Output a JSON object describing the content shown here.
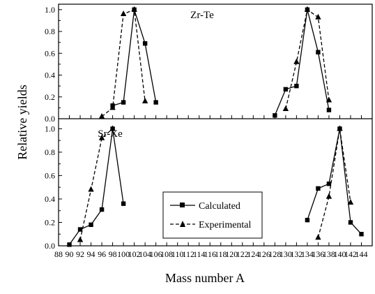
{
  "chart_data": [
    {
      "type": "line",
      "panel_title": "Zr-Te",
      "xlim": [
        88,
        146
      ],
      "ylim": [
        0.0,
        1.05
      ],
      "yticks": [
        0.0,
        0.2,
        0.4,
        0.6,
        0.8,
        1.0
      ],
      "series": [
        {
          "name": "Calculated",
          "style": "solid",
          "marker": "square",
          "segments": [
            [
              [
                98,
                0.12
              ],
              [
                100,
                0.15
              ],
              [
                102,
                1.0
              ],
              [
                104,
                0.69
              ],
              [
                106,
                0.15
              ]
            ],
            [
              [
                128,
                0.03
              ],
              [
                130,
                0.27
              ],
              [
                132,
                0.3
              ],
              [
                134,
                1.0
              ],
              [
                136,
                0.61
              ],
              [
                138,
                0.08
              ]
            ]
          ]
        },
        {
          "name": "Experimental",
          "style": "dashed",
          "marker": "triangle",
          "segments": [
            [
              [
                96,
                0.02
              ],
              [
                98,
                0.1
              ],
              [
                100,
                0.96
              ],
              [
                102,
                1.0
              ],
              [
                104,
                0.16
              ]
            ],
            [
              [
                130,
                0.09
              ],
              [
                132,
                0.52
              ],
              [
                134,
                1.0
              ],
              [
                136,
                0.93
              ],
              [
                138,
                0.17
              ]
            ]
          ]
        }
      ]
    },
    {
      "type": "line",
      "panel_title": "Sr-Xe",
      "xlim": [
        88,
        146
      ],
      "ylim": [
        0.0,
        1.05
      ],
      "yticks": [
        0.0,
        0.2,
        0.4,
        0.6,
        0.8,
        1.0
      ],
      "series": [
        {
          "name": "Calculated",
          "style": "solid",
          "marker": "square",
          "segments": [
            [
              [
                90,
                0.01
              ],
              [
                92,
                0.14
              ],
              [
                94,
                0.18
              ],
              [
                96,
                0.31
              ],
              [
                98,
                1.0
              ],
              [
                100,
                0.36
              ]
            ],
            [
              [
                134,
                0.22
              ],
              [
                136,
                0.49
              ],
              [
                138,
                0.53
              ],
              [
                140,
                1.0
              ],
              [
                142,
                0.2
              ],
              [
                144,
                0.1
              ]
            ]
          ]
        },
        {
          "name": "Experimental",
          "style": "dashed",
          "marker": "triangle",
          "segments": [
            [
              [
                92,
                0.05
              ],
              [
                94,
                0.48
              ],
              [
                96,
                0.92
              ],
              [
                98,
                1.0
              ]
            ],
            [
              [
                136,
                0.07
              ],
              [
                138,
                0.42
              ],
              [
                140,
                1.0
              ],
              [
                142,
                0.37
              ]
            ]
          ]
        }
      ]
    }
  ],
  "x_ticks": [
    88,
    90,
    92,
    94,
    96,
    98,
    100,
    102,
    104,
    106,
    108,
    110,
    112,
    114,
    116,
    118,
    120,
    122,
    124,
    126,
    128,
    130,
    132,
    134,
    136,
    138,
    140,
    142,
    144
  ],
  "xlabel": "Mass number A",
  "ylabel": "Relative yields",
  "legend": {
    "placement": "bottom-center",
    "entries": [
      {
        "label": "Calculated",
        "style": "solid",
        "marker": "square"
      },
      {
        "label": "Experimental",
        "style": "dashed",
        "marker": "triangle"
      }
    ]
  }
}
